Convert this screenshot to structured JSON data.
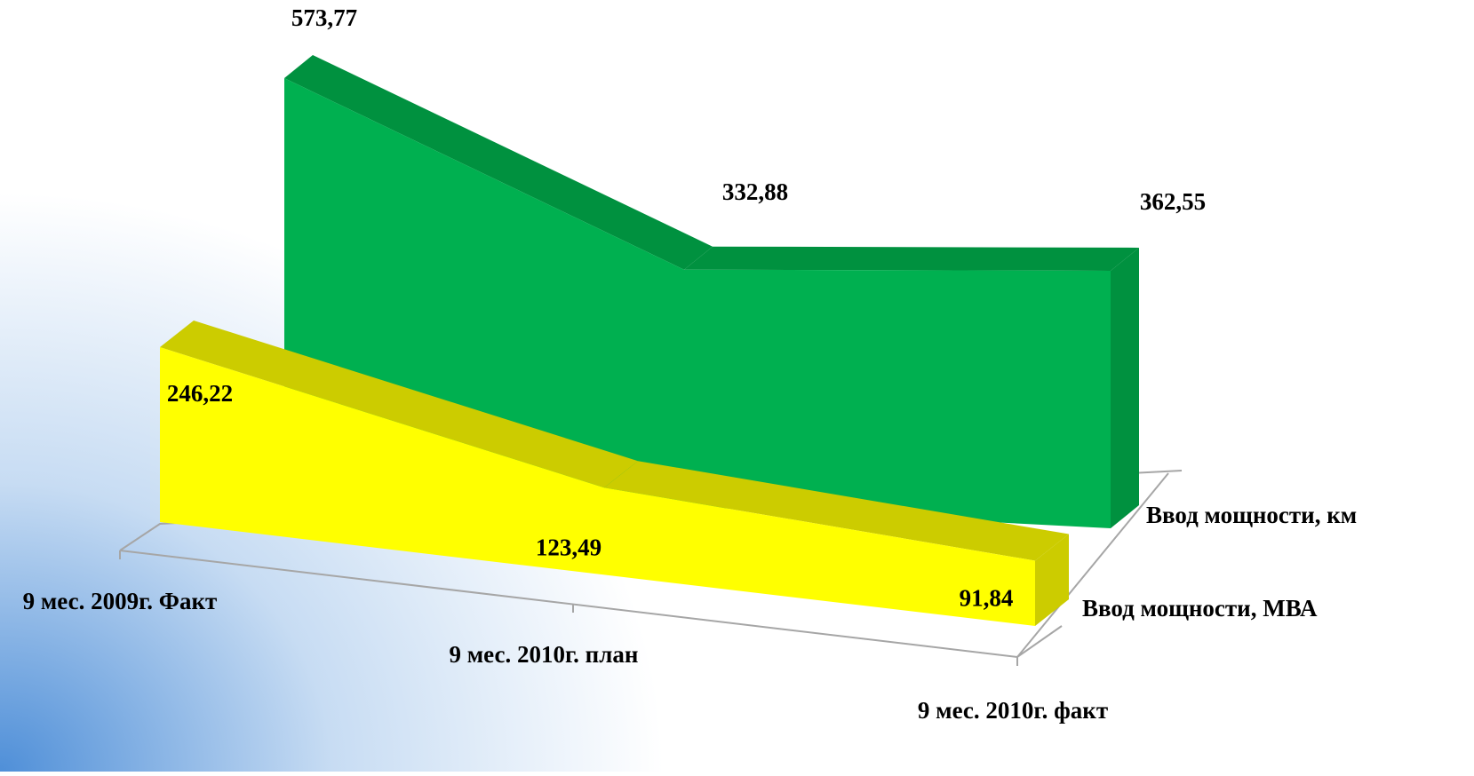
{
  "chart_data": {
    "type": "area3d",
    "categories": [
      "9 мес. 2009г. Факт",
      "9 мес. 2010г. план",
      "9 мес. 2010г. факт"
    ],
    "series": [
      {
        "name": "Ввод мощности, МВА",
        "color": "#ffff00",
        "values": [
          246.22,
          123.49,
          91.84
        ],
        "value_labels": [
          "246,22",
          "123,49",
          "91,84"
        ]
      },
      {
        "name": "Ввод мощности, км",
        "color": "#00b050",
        "values": [
          573.77,
          332.88,
          362.55
        ],
        "value_labels": [
          "573,77",
          "332,88",
          "362,55"
        ]
      }
    ]
  }
}
